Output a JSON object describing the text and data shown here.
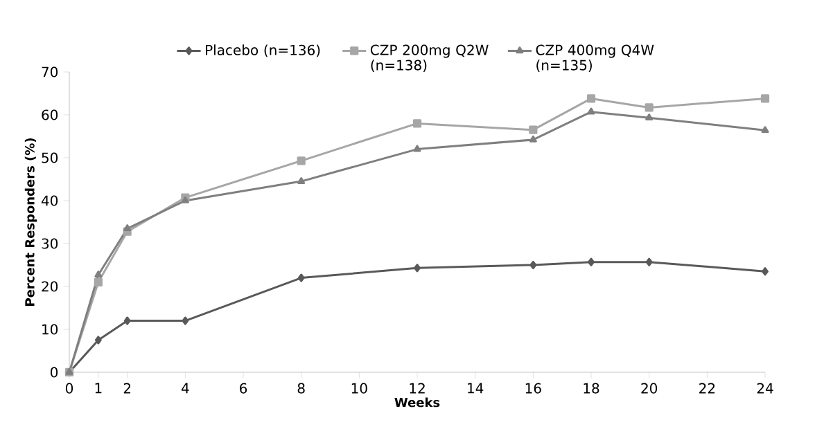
{
  "chart_data": {
    "type": "line",
    "xlabel": "Weeks",
    "ylabel": "Percent Responders (%)",
    "x": [
      0,
      1,
      2,
      4,
      8,
      12,
      16,
      18,
      20,
      24
    ],
    "xlim": [
      0,
      24
    ],
    "xticks": [
      0,
      1,
      2,
      4,
      6,
      8,
      10,
      12,
      14,
      16,
      18,
      20,
      22,
      24
    ],
    "ylim": [
      0,
      70
    ],
    "yticks": [
      0,
      10,
      20,
      30,
      40,
      50,
      60,
      70
    ],
    "grid": false,
    "legend": "top",
    "line_style": "solid",
    "series": [
      {
        "name": "Placebo (n=136)",
        "color": "#595959",
        "marker": "diamond",
        "values": [
          0,
          7.5,
          12,
          12,
          22,
          24.3,
          25,
          25.7,
          25.7,
          23.5
        ]
      },
      {
        "name": "CZP 200mg Q2W (n=138)",
        "color": "#a6a6a6",
        "marker": "square",
        "values": [
          0,
          21,
          32.8,
          40.7,
          49.3,
          58,
          56.5,
          63.8,
          61.7,
          63.8
        ]
      },
      {
        "name": "CZP 400mg Q4W (n=135)",
        "color": "#7f7f7f",
        "marker": "triangle",
        "values": [
          0,
          22.7,
          33.5,
          40,
          44.5,
          52,
          54.2,
          60.7,
          59.3,
          56.4
        ]
      }
    ]
  }
}
